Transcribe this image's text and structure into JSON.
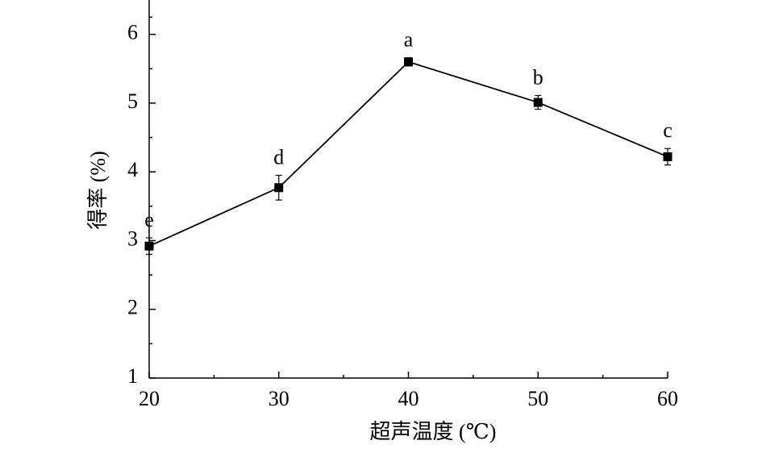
{
  "chart_data": {
    "type": "line",
    "x_label": "超声温度 (℃)",
    "y_label": "得率 (%)",
    "x": [
      20,
      30,
      40,
      50,
      60
    ],
    "series": [
      {
        "name": "得率",
        "color": "#000000",
        "values": [
          2.92,
          3.77,
          5.6,
          5.01,
          4.22
        ],
        "errors": [
          0.12,
          0.18,
          0.06,
          0.1,
          0.12
        ],
        "labels": [
          "e",
          "d",
          "a",
          "b",
          "c"
        ]
      }
    ],
    "xlim": [
      20,
      60
    ],
    "xticks": [
      20,
      30,
      40,
      50,
      60
    ],
    "ylim": [
      1,
      6.5
    ],
    "yticks": [
      1,
      2,
      3,
      4,
      5,
      6
    ]
  }
}
